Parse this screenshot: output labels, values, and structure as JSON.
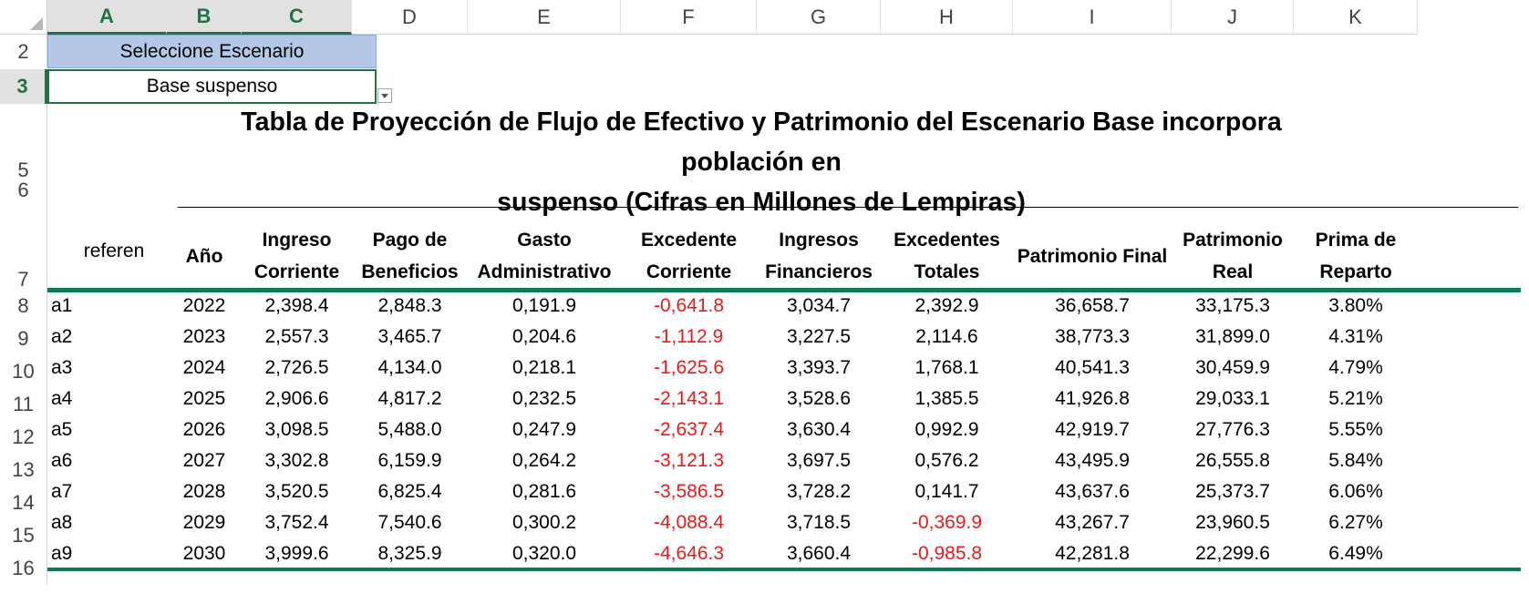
{
  "columns": [
    "A",
    "B",
    "C",
    "D",
    "E",
    "F",
    "G",
    "H",
    "I",
    "J",
    "K"
  ],
  "selected_columns": [
    "A",
    "B",
    "C"
  ],
  "row_numbers": [
    "2",
    "3",
    "5",
    "6",
    "7",
    "8",
    "9",
    "10",
    "11",
    "12",
    "13",
    "14",
    "15",
    "16"
  ],
  "scenario": {
    "label": "Seleccione Escenario",
    "value": "Base suspenso"
  },
  "title_line1": "Tabla de Proyección de Flujo de Efectivo y Patrimonio del Escenario Base incorpora población en",
  "title_line2": "suspenso  (Cifras en Millones de Lempiras)",
  "table": {
    "ref_header": "referen",
    "headers": [
      [
        "Año"
      ],
      [
        "Ingreso",
        "Corriente"
      ],
      [
        "Pago de",
        "Beneficios"
      ],
      [
        "Gasto",
        "Administrativo"
      ],
      [
        "Excedente",
        "Corriente"
      ],
      [
        "Ingresos",
        "Financieros"
      ],
      [
        "Excedentes",
        "Totales"
      ],
      [
        "Patrimonio Final"
      ],
      [
        "Patrimonio",
        "Real"
      ],
      [
        "Prima de",
        "Reparto"
      ]
    ],
    "rows": [
      {
        "row": "8",
        "ref": "a1",
        "year": "2022",
        "ingreso": "2,398.4",
        "pago": "2,848.3",
        "gasto": "0,191.9",
        "exc_corr": "-0,641.8",
        "ing_fin": "3,034.7",
        "exc_tot": "2,392.9",
        "pat_final": "36,658.7",
        "pat_real": "33,175.3",
        "prima": "3.80%"
      },
      {
        "row": "9",
        "ref": "a2",
        "year": "2023",
        "ingreso": "2,557.3",
        "pago": "3,465.7",
        "gasto": "0,204.6",
        "exc_corr": "-1,112.9",
        "ing_fin": "3,227.5",
        "exc_tot": "2,114.6",
        "pat_final": "38,773.3",
        "pat_real": "31,899.0",
        "prima": "4.31%"
      },
      {
        "row": "10",
        "ref": "a3",
        "year": "2024",
        "ingreso": "2,726.5",
        "pago": "4,134.0",
        "gasto": "0,218.1",
        "exc_corr": "-1,625.6",
        "ing_fin": "3,393.7",
        "exc_tot": "1,768.1",
        "pat_final": "40,541.3",
        "pat_real": "30,459.9",
        "prima": "4.79%"
      },
      {
        "row": "11",
        "ref": "a4",
        "year": "2025",
        "ingreso": "2,906.6",
        "pago": "4,817.2",
        "gasto": "0,232.5",
        "exc_corr": "-2,143.1",
        "ing_fin": "3,528.6",
        "exc_tot": "1,385.5",
        "pat_final": "41,926.8",
        "pat_real": "29,033.1",
        "prima": "5.21%"
      },
      {
        "row": "12",
        "ref": "a5",
        "year": "2026",
        "ingreso": "3,098.5",
        "pago": "5,488.0",
        "gasto": "0,247.9",
        "exc_corr": "-2,637.4",
        "ing_fin": "3,630.4",
        "exc_tot": "0,992.9",
        "pat_final": "42,919.7",
        "pat_real": "27,776.3",
        "prima": "5.55%"
      },
      {
        "row": "13",
        "ref": "a6",
        "year": "2027",
        "ingreso": "3,302.8",
        "pago": "6,159.9",
        "gasto": "0,264.2",
        "exc_corr": "-3,121.3",
        "ing_fin": "3,697.5",
        "exc_tot": "0,576.2",
        "pat_final": "43,495.9",
        "pat_real": "26,555.8",
        "prima": "5.84%"
      },
      {
        "row": "14",
        "ref": "a7",
        "year": "2028",
        "ingreso": "3,520.5",
        "pago": "6,825.4",
        "gasto": "0,281.6",
        "exc_corr": "-3,586.5",
        "ing_fin": "3,728.2",
        "exc_tot": "0,141.7",
        "pat_final": "43,637.6",
        "pat_real": "25,373.7",
        "prima": "6.06%"
      },
      {
        "row": "15",
        "ref": "a8",
        "year": "2029",
        "ingreso": "3,752.4",
        "pago": "7,540.6",
        "gasto": "0,300.2",
        "exc_corr": "-4,088.4",
        "ing_fin": "3,718.5",
        "exc_tot": "-0,369.9",
        "pat_final": "43,267.7",
        "pat_real": "23,960.5",
        "prima": "6.27%"
      },
      {
        "row": "16",
        "ref": "a9",
        "year": "2030",
        "ingreso": "3,999.6",
        "pago": "8,325.9",
        "gasto": "0,320.0",
        "exc_corr": "-4,646.3",
        "ing_fin": "3,660.4",
        "exc_tot": "-0,985.8",
        "pat_final": "42,281.8",
        "pat_real": "22,299.6",
        "prima": "6.49%"
      }
    ]
  },
  "colors": {
    "excel_green": "#217346",
    "rule_green": "#0e7a4f",
    "scenario_fill": "#b4c7e7",
    "negative": "#e81a1a"
  }
}
